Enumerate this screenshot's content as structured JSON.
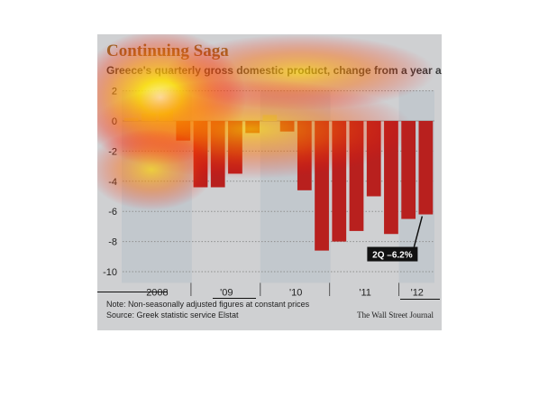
{
  "heatmap_overlay": true,
  "colors": {
    "background": "#cfd0d2",
    "bar_negative": "#b8201e",
    "bar_positive": "#c9d08c",
    "title": "#9a6a2a",
    "callout_bg": "#111111",
    "callout_text": "#ffffff"
  },
  "chart_data": {
    "type": "bar",
    "title": "Continuing Saga",
    "subtitle": "Greece's quarterly gross domestic product, change from a year ago",
    "xlabel": "",
    "ylabel": "",
    "ylim": [
      -10.5,
      2.5
    ],
    "yticks": [
      2,
      0,
      -2,
      -4,
      -6,
      -8,
      -10
    ],
    "ytick_labels": [
      "2",
      "0",
      "-2",
      "-4",
      "-6",
      "-8",
      "-10"
    ],
    "grid": true,
    "year_labels": [
      "2008",
      "'09",
      "'10",
      "'11",
      "'12"
    ],
    "year_spans": [
      [
        0,
        3
      ],
      [
        4,
        7
      ],
      [
        8,
        11
      ],
      [
        12,
        15
      ],
      [
        16,
        17
      ]
    ],
    "values": [
      0.2,
      0.5,
      0.8,
      -1.3,
      -4.4,
      -4.4,
      -3.5,
      -0.8,
      0.4,
      -0.7,
      -4.6,
      -8.6,
      -8.0,
      -7.3,
      -5.0,
      -7.5,
      -6.5,
      -6.2
    ],
    "annotation": {
      "text": "2Q –6.2%",
      "index": 17
    }
  },
  "footer": {
    "note": "Note: Non-seasonally adjusted figures at constant prices",
    "source": "Source: Greek statistic service Elstat",
    "credit": "The Wall Street Journal"
  }
}
